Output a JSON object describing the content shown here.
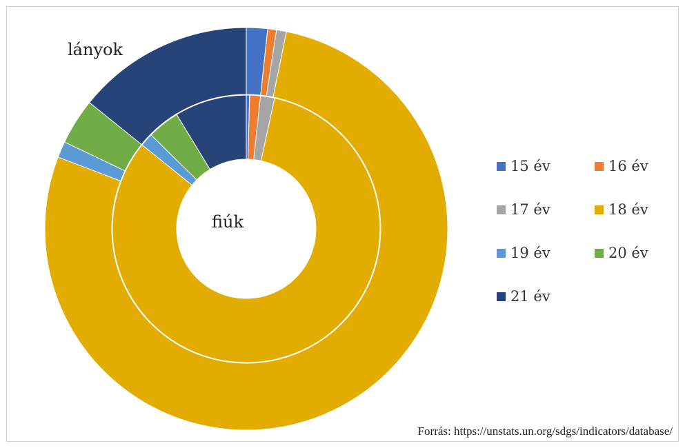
{
  "chart_data": {
    "type": "pie",
    "subtype": "nested-donut",
    "categories": [
      "15 év",
      "16 év",
      "17 év",
      "18 év",
      "19 év",
      "20 év",
      "21 év"
    ],
    "colors": [
      "#4472C4",
      "#ED7D31",
      "#A5A5A5",
      "#E2AC00",
      "#5B9BD5",
      "#70AD47",
      "#264478"
    ],
    "series": [
      {
        "name": "lányok",
        "ring": "outer",
        "values": [
          1.7,
          0.7,
          0.8,
          77.6,
          1.3,
          3.7,
          14.2
        ]
      },
      {
        "name": "fiúk",
        "ring": "inner",
        "values": [
          0.4,
          1.3,
          1.7,
          82.4,
          1.6,
          3.9,
          8.7
        ]
      }
    ],
    "legend": "right"
  },
  "labels": {
    "outer": "lányok",
    "inner": "fiúk"
  },
  "source": "Forrás: https://unstats.un.org/sdgs/indicators/database/"
}
